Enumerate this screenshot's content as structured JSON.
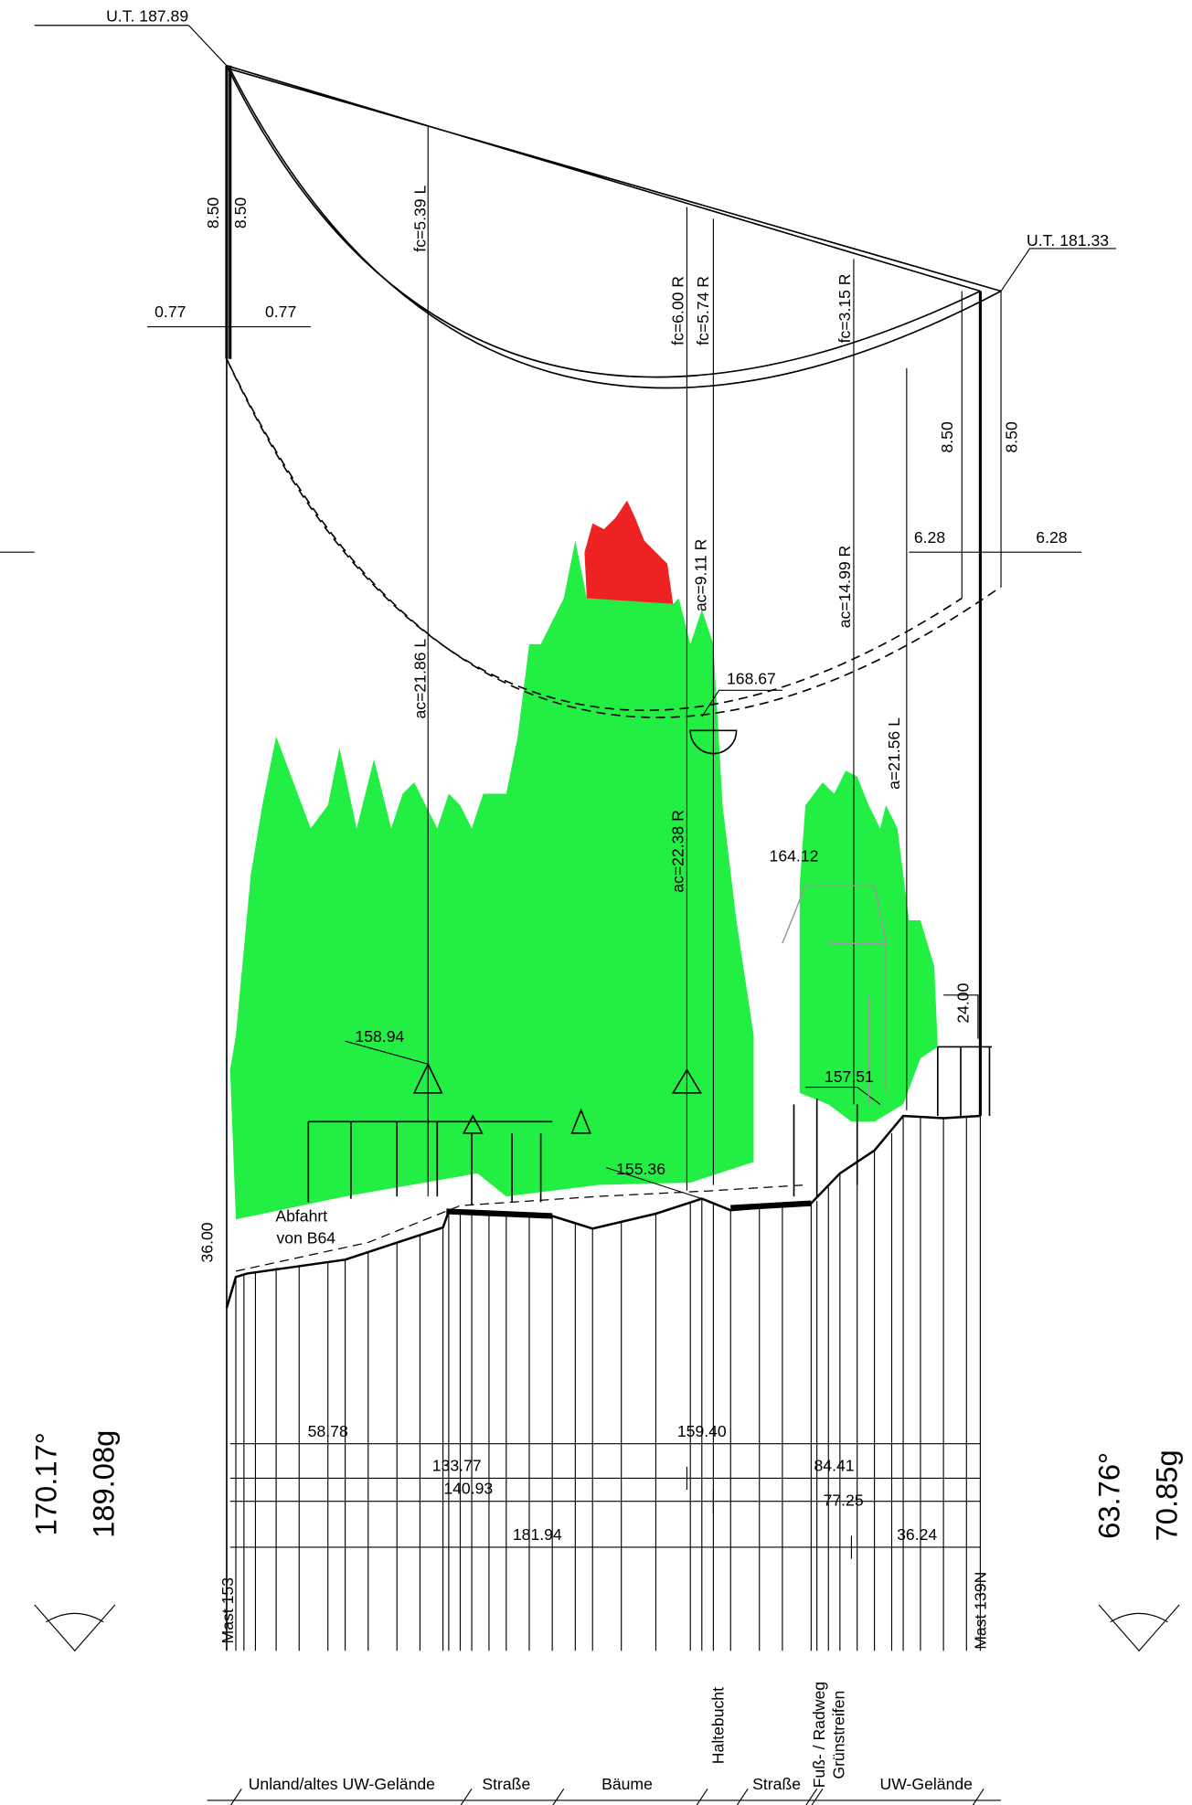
{
  "labels": [
    "U.T. 187.89",
    "U.T. 181.33",
    "8.50",
    "8.50",
    "0.77",
    "0.77",
    "8.50",
    "8.50",
    "6.28",
    "6.28",
    "fc=5.39 L",
    "fc=6.00 R",
    "fc=5.74 R",
    "fc=3.15 R",
    "ac=9.11 R",
    "ac=14.99 R",
    "ac=21.86 L",
    "ac=22.38 R",
    "a=21.56 L",
    "168.67",
    "164.12",
    "158.94",
    "157.51",
    "155.36",
    "24.00",
    "36.00",
    "Abfahrt",
    "von B64",
    "58.78",
    "159.40",
    "133.77",
    "84.41",
    "140.93",
    "77.25",
    "181.94",
    "36.24",
    "Mast 153",
    "Mast 139N",
    "170.17°",
    "189.08g",
    "63.76°",
    "70.85g",
    "Haltebucht",
    "Fuß- / Radweg",
    "Grünstreifen",
    "Unland/altes UW-Gelände",
    "Straße",
    "Bäume",
    "Straße",
    "UW-Gelände"
  ]
}
